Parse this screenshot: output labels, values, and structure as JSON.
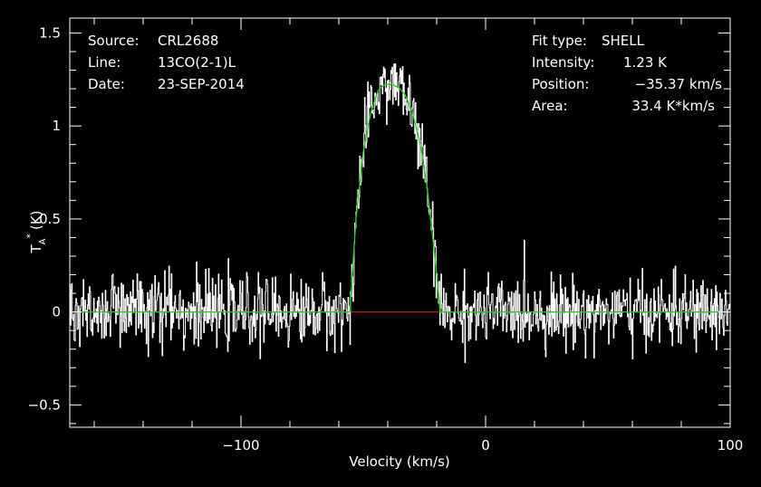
{
  "chart_data": {
    "type": "line",
    "xlabel": "Velocity (km/s)",
    "ylabel": "T",
    "ylabel_sub": "A",
    "ylabel_sup": "*",
    "ylabel_unit": "(K)",
    "xlim": [
      -170,
      100
    ],
    "ylim": [
      -0.62,
      1.58
    ],
    "x_ticks": [
      -100,
      0,
      100
    ],
    "x_tick_labels": [
      "−100",
      "0",
      "100"
    ],
    "y_ticks": [
      -0.5,
      0,
      0.5,
      1,
      1.5
    ],
    "y_tick_labels": [
      "−0.5",
      "0",
      "0.5",
      "1",
      "1.5"
    ],
    "colors": {
      "background": "#000000",
      "axes": "#ffffff",
      "spectrum": "#ffffff",
      "fit": "#22cc22",
      "baseline": "#cc2222"
    },
    "spectrum": {
      "channel_width_kms": 0.25,
      "noise_rms_K": 0.09,
      "x_start": -170,
      "x_end": 100
    },
    "fit": {
      "type": "SHELL",
      "peak_K": 1.23,
      "center_kms": -35.37,
      "x_range": [
        -55,
        -19
      ]
    },
    "baseline": {
      "x_range": [
        -55,
        -18
      ],
      "value": 0
    },
    "fit_curve": {
      "x": [
        -170,
        -55.5,
        -53,
        -50,
        -47,
        -44,
        -41,
        -38,
        -35.4,
        -33,
        -30,
        -27,
        -24,
        -21,
        -18.5,
        100
      ],
      "y": [
        0,
        0,
        0.5,
        0.86,
        1.07,
        1.19,
        1.225,
        1.222,
        1.205,
        1.17,
        1.08,
        0.92,
        0.68,
        0.33,
        0,
        0
      ]
    }
  },
  "info_left": {
    "source_label": "Source:",
    "source_value": "CRL2688",
    "line_label": "Line:",
    "line_value": "13CO(2-1)L",
    "date_label": "Date:",
    "date_value": "23-SEP-2014"
  },
  "info_right": {
    "fit_type_label": "Fit type:",
    "fit_type_value": "SHELL",
    "intensity_label": "Intensity:",
    "intensity_value": "1.23 K",
    "position_label": "Position:",
    "position_value": "−35.37 km/s",
    "area_label": "Area:",
    "area_value": "33.4 K*km/s"
  }
}
